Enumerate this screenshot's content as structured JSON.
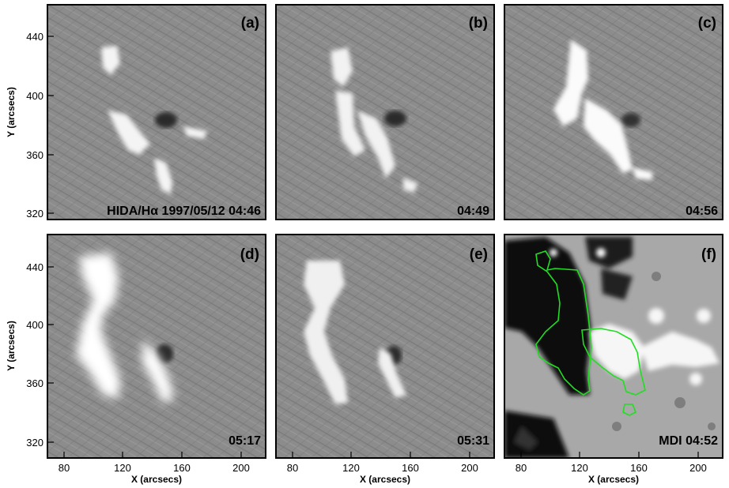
{
  "figure": {
    "panels": [
      {
        "id": "a",
        "label": "(a)",
        "stamp": "HIDA/Hα 1997/05/12 04:46",
        "kind": "halpha"
      },
      {
        "id": "b",
        "label": "(b)",
        "stamp": "04:49",
        "kind": "halpha"
      },
      {
        "id": "c",
        "label": "(c)",
        "stamp": "04:56",
        "kind": "halpha"
      },
      {
        "id": "d",
        "label": "(d)",
        "stamp": "05:17",
        "kind": "halpha"
      },
      {
        "id": "e",
        "label": "(e)",
        "stamp": "05:31",
        "kind": "halpha"
      },
      {
        "id": "f",
        "label": "(f)",
        "stamp": "MDI  04:52",
        "kind": "magnetogram"
      }
    ],
    "x_axis": {
      "title": "X (arcsecs)",
      "ticks": [
        "80",
        "120",
        "160",
        "200"
      ]
    },
    "y_axis": {
      "title": "Y (arcsecs)",
      "ticks": [
        "440",
        "400",
        "360",
        "320"
      ]
    },
    "colors": {
      "frame": "#000000",
      "contour": "#22dd22",
      "halpha_bg": "#8c8c8c",
      "magnetogram_bg": "#a8a8a8"
    }
  }
}
